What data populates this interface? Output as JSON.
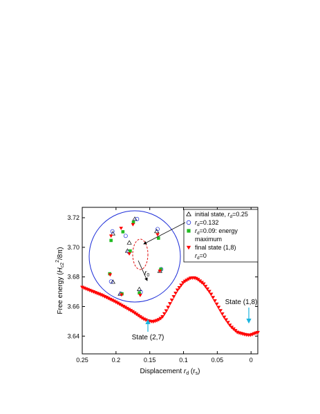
{
  "chart_data": {
    "type": "scatter",
    "title": "",
    "xlabel": {
      "main": "Displacement ",
      "var": "r",
      "sub": "d",
      "unit": " (r",
      "unit_sub": "s",
      "close": ")"
    },
    "ylabel": {
      "main": "Free energy (",
      "var": "H",
      "sub": "c2",
      "sup": "2",
      "rest": "/8π)"
    },
    "xlim": [
      0.25,
      -0.01
    ],
    "ylim": [
      3.628,
      3.727
    ],
    "x_ticks": [
      0.25,
      0.2,
      0.15,
      0.1,
      0.05,
      0
    ],
    "x_tick_labels": [
      "0.25",
      "0.2",
      "0.15",
      "0.1",
      "0.05",
      "0"
    ],
    "y_ticks": [
      3.64,
      3.66,
      3.68,
      3.7,
      3.72
    ],
    "y_tick_labels": [
      "3.64",
      "3.66",
      "3.68",
      "3.70",
      "3.72"
    ],
    "grid": false,
    "series": [
      {
        "marker": "triangle-down",
        "color": "#ff0000",
        "curve_x": [
          0.25,
          0.22,
          0.2,
          0.175,
          0.16,
          0.152,
          0.145,
          0.138,
          0.132,
          0.125,
          0.12,
          0.11,
          0.1,
          0.09,
          0.085,
          0.08,
          0.07,
          0.06,
          0.05,
          0.04,
          0.03,
          0.02,
          0.01,
          0.005,
          0,
          -0.005,
          -0.01
        ],
        "curve_y": [
          3.673,
          3.6675,
          3.663,
          3.6565,
          3.6518,
          3.6502,
          3.6498,
          3.6508,
          3.6525,
          3.6575,
          3.662,
          3.6705,
          3.6765,
          3.6792,
          3.6795,
          3.6788,
          3.6752,
          3.669,
          3.661,
          3.653,
          3.6465,
          3.6425,
          3.6412,
          3.6408,
          3.6408,
          3.6418,
          3.6425
        ],
        "point_count": 95
      }
    ],
    "annotations": [
      {
        "text": "State (2,7)",
        "x": 0.15,
        "y": 3.6495
      },
      {
        "text": "State (1,8)",
        "x": 0.001,
        "y": 3.641
      }
    ],
    "inset": {
      "r0_label": {
        "main": "r",
        "sub": "0"
      },
      "groups": [
        {
          "tri": [
            -0.48,
            -0.56
          ],
          "circ": [
            -0.52,
            -0.55
          ],
          "sq": [
            -0.55,
            -0.38
          ],
          "down": [
            -0.54,
            -0.4
          ]
        },
        {
          "tri": [
            -0.48,
            0.5
          ],
          "circ": [
            -0.49,
            0.55
          ],
          "sq": [
            -0.52,
            0.35
          ],
          "down": [
            -0.52,
            0.45
          ]
        },
        {
          "tri": [
            0.0,
            0.82
          ],
          "circ": [
            0.05,
            0.82
          ],
          "sq": [
            -0.03,
            0.75
          ],
          "down": [
            -0.04,
            0.7
          ]
        },
        {
          "tri": [
            0.48,
            0.55
          ],
          "circ": [
            0.5,
            0.6
          ],
          "sq": [
            0.52,
            0.4
          ],
          "down": [
            0.5,
            0.48
          ]
        },
        {
          "tri": [
            0.55,
            -0.32
          ],
          "circ": [
            0.58,
            -0.28
          ],
          "sq": [
            0.57,
            -0.28
          ],
          "down": [
            0.55,
            -0.32
          ]
        },
        {
          "tri": [
            0.1,
            -0.72
          ],
          "circ": [
            0.13,
            -0.78
          ],
          "sq": [
            0.1,
            -0.8
          ],
          "down": [
            0.12,
            -0.85
          ]
        },
        {
          "tri": [
            -0.32,
            -0.82
          ],
          "circ": [
            -0.3,
            -0.82
          ],
          "sq": [
            -0.28,
            -0.82
          ],
          "down": [
            -0.29,
            -0.84
          ]
        },
        {
          "tri": [
            -0.12,
            0.3
          ],
          "circ": [
            -0.2,
            0.45
          ],
          "sq": [
            -0.26,
            0.54
          ],
          "down": [
            -0.3,
            0.62
          ]
        },
        {
          "tri": [
            -0.16,
            0.12
          ],
          "circ": [
            -0.13,
            0.1
          ],
          "sq": [
            -0.1,
            0.12
          ],
          "down": [
            -0.12,
            0.06
          ]
        }
      ]
    },
    "legend": {
      "position": "top-right",
      "entries": [
        {
          "marker": "triangle-open",
          "color": "#000000",
          "text": "initial state, ",
          "var": "r",
          "sub": "d",
          "value": "=0.25"
        },
        {
          "marker": "circle-open",
          "color": "#1a2bd8",
          "text": "",
          "var": "r",
          "sub": "d",
          "value": "=0.132"
        },
        {
          "marker": "square",
          "color": "#22bb22",
          "text": "",
          "var": "r",
          "sub": "d",
          "value": "=0.09: energy"
        },
        {
          "marker": "none",
          "color": "#000000",
          "text": "maximum",
          "var": "",
          "sub": "",
          "value": ""
        },
        {
          "marker": "triangle-down",
          "color": "#ff0000",
          "text": "final state (1,8)",
          "var": "",
          "sub": "",
          "value": ""
        },
        {
          "marker": "none",
          "color": "#000000",
          "text": "",
          "var": "r",
          "sub": "d",
          "value": "=0"
        }
      ]
    }
  }
}
